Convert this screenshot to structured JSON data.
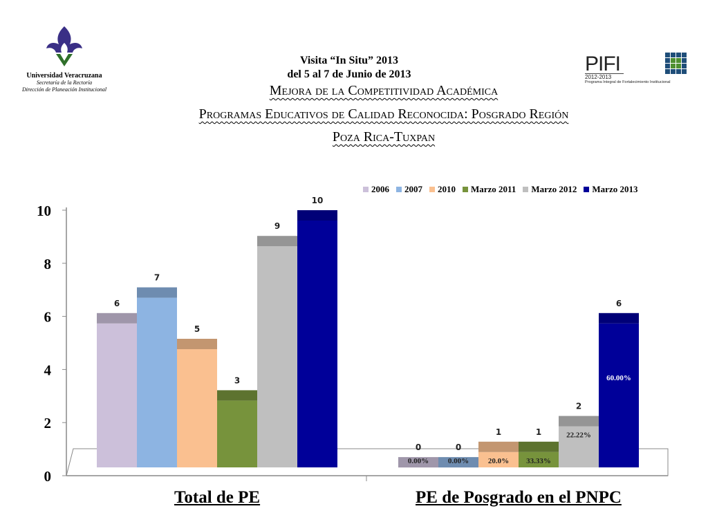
{
  "header": {
    "university": "Universidad Veracruzana",
    "dept_line1": "Secretaría de la Rectoría",
    "dept_line2": "Dirección de Planeación Institucional",
    "visit_line1": "Visita “In Situ”  2013",
    "visit_line2": "del 5 al 7 de Junio de 2013",
    "pifi_word": "PIFI",
    "pifi_years": "2012-2013",
    "pifi_program": "Programa Integral de Fortalecimiento Institucional",
    "title_line1": "Mejora de la Competitividad Académica",
    "title_line2": "Programas Educativos de Calidad Reconocida: Posgrado Región",
    "title_line3": "Poza Rica-Tuxpan"
  },
  "colors": {
    "2006": "#ccc0da",
    "2007": "#8db4e2",
    "2010": "#fac090",
    "Marzo 2011": "#77933c",
    "Marzo 2012": "#bfbfbf",
    "Marzo 2013": "#000099"
  },
  "chart_data": {
    "type": "bar",
    "categories": [
      "Total de PE",
      "PE de Posgrado en el PNPC"
    ],
    "series": [
      {
        "name": "2006",
        "values": [
          6,
          0
        ],
        "labels": [
          "6",
          "0"
        ],
        "pct": [
          null,
          "0.00%"
        ]
      },
      {
        "name": "2007",
        "values": [
          7,
          0
        ],
        "labels": [
          "7",
          "0"
        ],
        "pct": [
          null,
          "0.00%"
        ]
      },
      {
        "name": "2010",
        "values": [
          5,
          1
        ],
        "labels": [
          "5",
          "1"
        ],
        "pct": [
          null,
          "20.0%"
        ]
      },
      {
        "name": "Marzo 2011",
        "values": [
          3,
          1
        ],
        "labels": [
          "3",
          "1"
        ],
        "pct": [
          null,
          "33.33%"
        ]
      },
      {
        "name": "Marzo 2012",
        "values": [
          9,
          2
        ],
        "labels": [
          "9",
          "2"
        ],
        "pct": [
          null,
          "22.22%"
        ]
      },
      {
        "name": "Marzo 2013",
        "values": [
          10,
          6
        ],
        "labels": [
          "10",
          "6"
        ],
        "pct": [
          null,
          "60.00%"
        ]
      }
    ],
    "yticks": [
      "0",
      "2",
      "4",
      "6",
      "8",
      "10"
    ],
    "ylim": [
      0,
      10
    ],
    "legend_position": "top-right"
  }
}
